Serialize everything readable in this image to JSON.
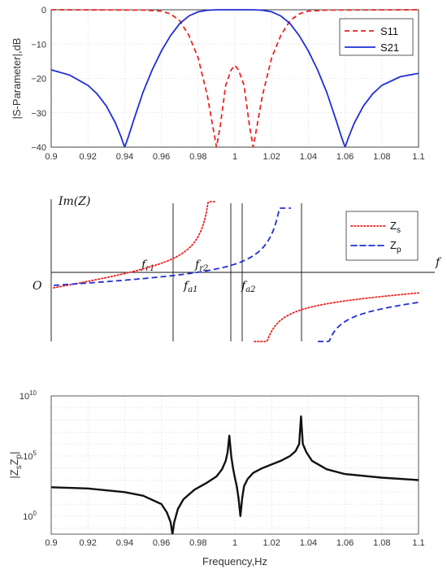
{
  "chart_data": [
    {
      "type": "line",
      "ylabel": "|S-Parameter|,dB",
      "xlim": [
        0.9,
        1.1
      ],
      "ylim": [
        -40,
        0
      ],
      "xticks": [
        0.9,
        0.92,
        0.94,
        0.96,
        0.98,
        1,
        1.02,
        1.04,
        1.06,
        1.08,
        1.1
      ],
      "xtick_labels": [
        "0.9",
        "0.92",
        "0.94",
        "0.96",
        "0.98",
        "1",
        "1.02",
        "1.04",
        "1.06",
        "1.08",
        "1.1"
      ],
      "yticks": [
        0,
        -10,
        -20,
        -30,
        -40
      ],
      "ytick_labels": [
        "0",
        "−10",
        "−20",
        "−30",
        "−40"
      ],
      "grid": true,
      "legend_position": "top-right",
      "series": [
        {
          "name": "S11",
          "color": "#ee2222",
          "dash": "dashed",
          "x": [
            0.9,
            0.95,
            0.96,
            0.965,
            0.97,
            0.975,
            0.98,
            0.985,
            0.988,
            0.99,
            0.992,
            0.995,
            0.998,
            1.0,
            1.002,
            1.005,
            1.008,
            1.01,
            1.012,
            1.015,
            1.02,
            1.025,
            1.03,
            1.035,
            1.04,
            1.05,
            1.1
          ],
          "y": [
            0,
            -0.1,
            -0.4,
            -1.2,
            -3.2,
            -7.5,
            -14,
            -25,
            -34,
            -40,
            -34,
            -22,
            -17.5,
            -16.2,
            -17.5,
            -22,
            -34,
            -40,
            -34,
            -25,
            -14,
            -7.5,
            -3.2,
            -1.2,
            -0.4,
            -0.1,
            0
          ]
        },
        {
          "name": "S21",
          "color": "#1f2fd6",
          "dash": "solid",
          "x": [
            0.9,
            0.91,
            0.92,
            0.925,
            0.93,
            0.935,
            0.938,
            0.94,
            0.942,
            0.945,
            0.95,
            0.955,
            0.96,
            0.965,
            0.97,
            0.975,
            0.98,
            0.985,
            0.99,
            1.0,
            1.01,
            1.015,
            1.02,
            1.025,
            1.03,
            1.035,
            1.04,
            1.045,
            1.05,
            1.055,
            1.058,
            1.06,
            1.062,
            1.065,
            1.07,
            1.075,
            1.08,
            1.09,
            1.1
          ],
          "y": [
            -17.5,
            -19,
            -22,
            -24.5,
            -28,
            -33,
            -37,
            -40,
            -37,
            -32,
            -24,
            -17.5,
            -12,
            -7.5,
            -4,
            -1.8,
            -0.6,
            -0.15,
            0,
            0,
            0,
            -0.15,
            -0.6,
            -1.8,
            -4,
            -7.5,
            -12,
            -17.5,
            -24,
            -32,
            -37,
            -40,
            -37,
            -33,
            -28,
            -24.5,
            -22,
            -19.5,
            -18.5
          ]
        }
      ]
    },
    {
      "type": "line",
      "ylabel": "Im(Z)",
      "xlabel": "f",
      "origin_label": "O",
      "grid": false,
      "legend_position": "top-right",
      "markers": [
        {
          "main": "f",
          "sub": "r1"
        },
        {
          "main": "f",
          "sub": "r2"
        },
        {
          "main": "f",
          "sub": "a1"
        },
        {
          "main": "f",
          "sub": "a2"
        }
      ],
      "series": [
        {
          "name": "Z",
          "name_sub": "s",
          "color": "#ee2222",
          "dash": "dotted"
        },
        {
          "name": "Z",
          "name_sub": "p",
          "color": "#1f2fd6",
          "dash": "dashed"
        }
      ]
    },
    {
      "type": "line",
      "ylabel": "|Z",
      "ylabel_sub1": "s",
      "ylabel_mid": "Z",
      "ylabel_sub2": "p",
      "ylabel_end": "|",
      "xlabel": "Frequency,Hz",
      "xlim": [
        0.9,
        1.1
      ],
      "yscale": "log",
      "ylim_exp": [
        -1.5,
        10
      ],
      "ytick_exponents": [
        "0",
        "5",
        "10"
      ],
      "xticks": [
        0.9,
        0.92,
        0.94,
        0.96,
        0.98,
        1,
        1.02,
        1.04,
        1.06,
        1.08,
        1.1
      ],
      "xtick_labels": [
        "0.9",
        "0.92",
        "0.94",
        "0.96",
        "0.98",
        "1",
        "1.02",
        "1.04",
        "1.06",
        "1.08",
        "1.1"
      ],
      "grid": true,
      "series": [
        {
          "color": "#111111",
          "x_log10": [
            0.9,
            0.92,
            0.94,
            0.95,
            0.96,
            0.963,
            0.965,
            0.966,
            0.967,
            0.969,
            0.972,
            0.978,
            0.985,
            0.99,
            0.993,
            0.995,
            0.996,
            0.997,
            0.998,
            0.999,
            1.0,
            1.001,
            1.002,
            1.003,
            1.004,
            1.005,
            1.007,
            1.01,
            1.015,
            1.02,
            1.025,
            1.03,
            1.033,
            1.035,
            1.036,
            1.037,
            1.039,
            1.042,
            1.05,
            1.06,
            1.08,
            1.1
          ],
          "y_log10": [
            2.4,
            2.3,
            2.0,
            1.7,
            1.0,
            0.3,
            -0.5,
            -1.5,
            -0.5,
            0.6,
            1.4,
            2.2,
            2.8,
            3.3,
            3.9,
            4.6,
            5.3,
            6.7,
            5.0,
            4.0,
            3.2,
            2.5,
            1.5,
            0.0,
            1.5,
            2.5,
            3.1,
            3.6,
            4.0,
            4.3,
            4.6,
            5.0,
            5.4,
            6.0,
            8.3,
            6.0,
            5.3,
            4.6,
            3.9,
            3.5,
            3.2,
            3.0
          ]
        }
      ]
    }
  ]
}
